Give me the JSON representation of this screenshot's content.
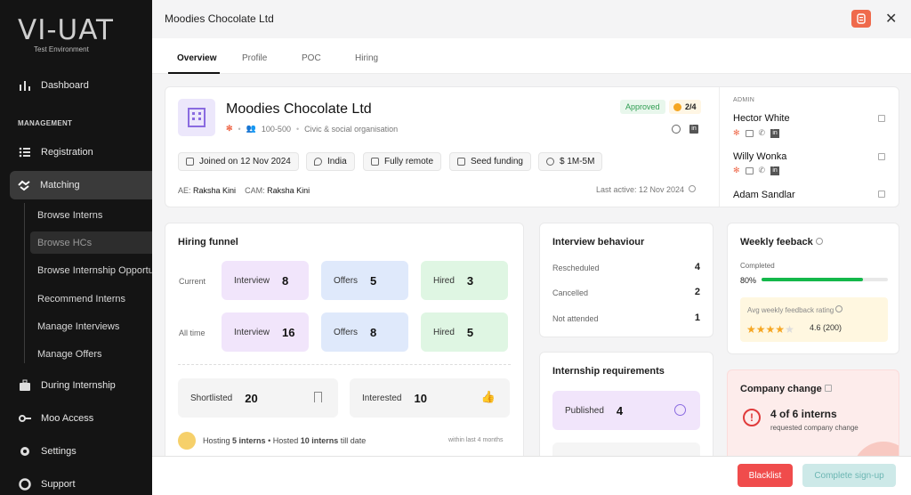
{
  "sidebar": {
    "logo": "VI-UAT",
    "env": "Test Environment",
    "dashboard": "Dashboard",
    "section": "MANAGEMENT",
    "registration": "Registration",
    "matching": "Matching",
    "subs": [
      "Browse Interns",
      "Browse HCs",
      "Browse Internship Opportu",
      "Recommend Interns",
      "Manage Interviews",
      "Manage Offers"
    ],
    "during": "During Internship",
    "moo": "Moo Access",
    "settings": "Settings",
    "support": "Support"
  },
  "header": {
    "title": "Moodies Chocolate Ltd"
  },
  "tabs": [
    "Overview",
    "Profile",
    "POC",
    "Hiring"
  ],
  "company": {
    "name": "Moodies Chocolate Ltd",
    "size": "100-500",
    "sector": "Civic & social organisation",
    "status": "Approved",
    "score": "2/4",
    "chips": [
      "Joined on 12 Nov 2024",
      "India",
      "Fully remote",
      "Seed funding",
      "$ 1M-5M"
    ],
    "ae_label": "AE:",
    "ae": "Raksha Kini",
    "cam_label": "CAM:",
    "cam": "Raksha Kini",
    "last_active": "Last active: 12 Nov 2024"
  },
  "admin": {
    "label": "ADMIN",
    "people": [
      "Hector White",
      "Willy Wonka",
      "Adam Sandlar"
    ]
  },
  "funnel": {
    "title": "Hiring funnel",
    "current": "Current",
    "alltime": "All time",
    "labels": [
      "Interview",
      "Offers",
      "Hired"
    ],
    "current_vals": [
      "8",
      "5",
      "3"
    ],
    "alltime_vals": [
      "16",
      "8",
      "5"
    ],
    "shortlisted_label": "Shortlisted",
    "shortlisted": "20",
    "interested_label": "Interested",
    "interested": "10",
    "hosting_pre": "Hosting",
    "hosting": "5 interns",
    "hosted_pre": "• Hosted",
    "hosted": "10 interns",
    "hosted_post": "till date",
    "window": "within last 4 months"
  },
  "interview": {
    "title": "Interview behaviour",
    "rows": [
      {
        "label": "Rescheduled",
        "val": "4"
      },
      {
        "label": "Cancelled",
        "val": "2"
      },
      {
        "label": "Not attended",
        "val": "1"
      }
    ]
  },
  "requirements": {
    "title": "Internship requirements",
    "published_label": "Published",
    "published": "4"
  },
  "weekly": {
    "title": "Weekly feeback",
    "completed_label": "Completed",
    "completed": "80%",
    "completed_frac": 0.8,
    "avg_label": "Avg weekly feedback rating",
    "rating": "4.6 (200)",
    "stars": 4
  },
  "change": {
    "title": "Company change",
    "count": "4 of 6 interns",
    "desc": "requested company change"
  },
  "actions": {
    "blacklist": "Blacklist",
    "signup": "Complete sign-up"
  },
  "colors": {
    "orange": "#ef6a4c",
    "green": "#14b84b",
    "red": "#f04c4c",
    "teal": "#cde9e8"
  }
}
